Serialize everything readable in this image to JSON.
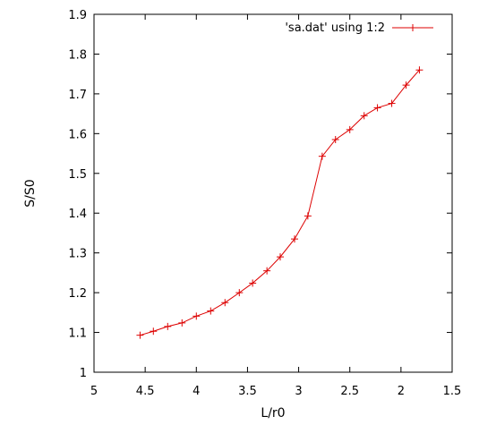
{
  "chart_data": {
    "type": "line",
    "xlabel": "L/r0",
    "ylabel": "S/S0",
    "xlim": [
      5,
      1.5
    ],
    "ylim": [
      1,
      1.9
    ],
    "x_reversed": true,
    "x_ticks": [
      5,
      4.5,
      4,
      3.5,
      3,
      2.5,
      2,
      1.5
    ],
    "x_tick_labels": [
      "5",
      "4.5",
      "4",
      "3.5",
      "3",
      "2.5",
      "2",
      "1.5"
    ],
    "y_ticks": [
      1,
      1.1,
      1.2,
      1.3,
      1.4,
      1.5,
      1.6,
      1.7,
      1.8,
      1.9
    ],
    "y_tick_labels": [
      "1",
      "1.1",
      "1.2",
      "1.3",
      "1.4",
      "1.5",
      "1.6",
      "1.7",
      "1.8",
      "1.9"
    ],
    "grid": false,
    "legend_position": "top-right",
    "series": [
      {
        "name": "'sa.dat' using 1:2",
        "color": "#dd0000",
        "marker": "plus",
        "points": [
          [
            4.55,
            1.093
          ],
          [
            4.42,
            1.103
          ],
          [
            4.28,
            1.115
          ],
          [
            4.14,
            1.124
          ],
          [
            4.0,
            1.141
          ],
          [
            3.86,
            1.154
          ],
          [
            3.72,
            1.175
          ],
          [
            3.58,
            1.2
          ],
          [
            3.45,
            1.224
          ],
          [
            3.31,
            1.255
          ],
          [
            3.18,
            1.29
          ],
          [
            3.04,
            1.335
          ],
          [
            2.91,
            1.393
          ],
          [
            2.77,
            1.543
          ],
          [
            2.64,
            1.585
          ],
          [
            2.5,
            1.61
          ],
          [
            2.36,
            1.645
          ],
          [
            2.23,
            1.665
          ],
          [
            2.09,
            1.676
          ],
          [
            1.95,
            1.722
          ],
          [
            1.82,
            1.76
          ]
        ]
      }
    ]
  }
}
